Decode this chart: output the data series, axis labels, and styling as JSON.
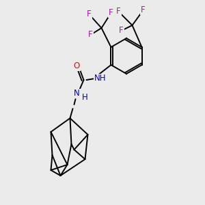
{
  "background_color": "#ebebeb",
  "bond_color": "#000000",
  "atom_colors": {
    "O": "#ff0000",
    "N": "#0000cc",
    "F": "#cc00cc",
    "C": "#000000"
  },
  "figsize": [
    3.0,
    3.0
  ],
  "dpi": 100,
  "bond_lw": 1.4,
  "fontsize": 8.5
}
